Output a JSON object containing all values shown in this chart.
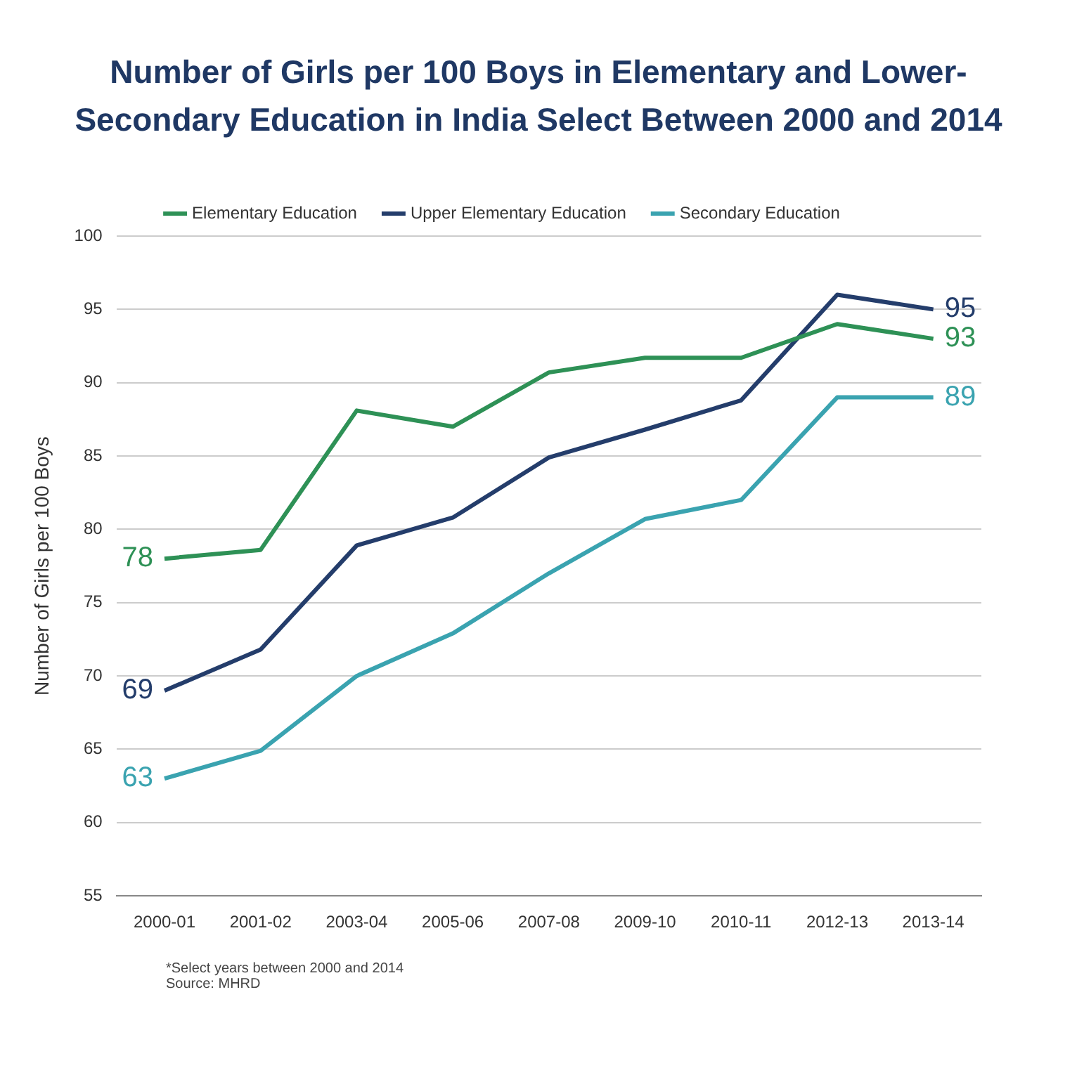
{
  "chart_data": {
    "type": "line",
    "title": "Number of Girls per 100 Boys in Elementary and Lower-Secondary Education in India Select Between 2000 and 2014",
    "ylabel": "Number of Girls per 100 Boys",
    "categories": [
      "2000-01",
      "2001-02",
      "2003-04",
      "2005-06",
      "2007-08",
      "2009-10",
      "2010-11",
      "2012-13",
      "2013-14"
    ],
    "series": [
      {
        "name": "Elementary Education",
        "color": "#2e9156",
        "values": [
          78,
          78.6,
          88.1,
          87,
          90.7,
          91.7,
          91.7,
          94,
          93
        ],
        "value_labels": [
          "78",
          null,
          null,
          null,
          null,
          null,
          null,
          null,
          "93"
        ]
      },
      {
        "name": "Upper Elementary Education",
        "color": "#243d6b",
        "values": [
          69,
          71.8,
          78.9,
          80.8,
          84.9,
          86.8,
          88.8,
          96,
          95
        ],
        "value_labels": [
          "69",
          null,
          null,
          null,
          null,
          null,
          null,
          null,
          "95"
        ]
      },
      {
        "name": "Secondary Education",
        "color": "#3aa3b0",
        "values": [
          63,
          64.9,
          70,
          72.9,
          77,
          80.7,
          82,
          89,
          89
        ],
        "value_labels": [
          "63",
          null,
          null,
          null,
          null,
          null,
          null,
          null,
          "89"
        ]
      }
    ],
    "ylim": [
      55,
      100
    ],
    "yticks": [
      55,
      60,
      65,
      70,
      75,
      80,
      85,
      90,
      95,
      100
    ],
    "grid": "y",
    "legend": "top",
    "marker": "none",
    "line_style": "solid",
    "annotations": [
      "*Select years between 2000 and 2014",
      "Source: MHRD"
    ]
  }
}
